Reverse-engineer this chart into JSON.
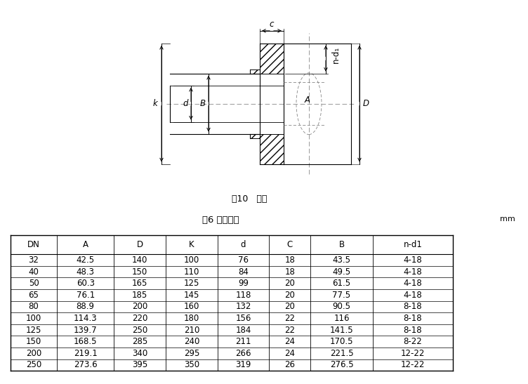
{
  "title_drawing": "图10   法兰",
  "title_table": "表6 法兰尺寸",
  "unit_label": "mm",
  "table_headers": [
    "DN",
    "A",
    "D",
    "K",
    "d",
    "C",
    "B",
    "n-d1"
  ],
  "table_data": [
    [
      "32",
      "42.5",
      "140",
      "100",
      "76",
      "18",
      "43.5",
      "4-18"
    ],
    [
      "40",
      "48.3",
      "150",
      "110",
      "84",
      "18",
      "49.5",
      "4-18"
    ],
    [
      "50",
      "60.3",
      "165",
      "125",
      "99",
      "20",
      "61.5",
      "4-18"
    ],
    [
      "65",
      "76.1",
      "185",
      "145",
      "118",
      "20",
      "77.5",
      "4-18"
    ],
    [
      "80",
      "88.9",
      "200",
      "160",
      "132",
      "20",
      "90.5",
      "8-18"
    ],
    [
      "100",
      "114.3",
      "220",
      "180",
      "156",
      "22",
      "116",
      "8-18"
    ],
    [
      "125",
      "139.7",
      "250",
      "210",
      "184",
      "22",
      "141.5",
      "8-18"
    ],
    [
      "150",
      "168.5",
      "285",
      "240",
      "211",
      "24",
      "170.5",
      "8-22"
    ],
    [
      "200",
      "219.1",
      "340",
      "295",
      "266",
      "24",
      "221.5",
      "12-22"
    ],
    [
      "250",
      "273.6",
      "395",
      "350",
      "319",
      "26",
      "276.5",
      "12-22"
    ]
  ],
  "bg_color": "#ffffff",
  "line_color": "#000000",
  "centerline_color": "#888888",
  "font_size_table": 8.5,
  "font_size_label": 8.5,
  "font_size_caption": 9,
  "font_size_title_table": 9.5
}
